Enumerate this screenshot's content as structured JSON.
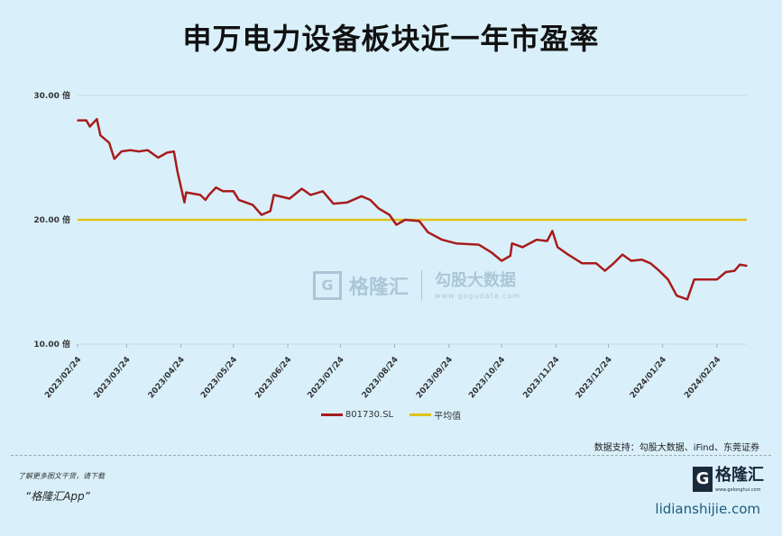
{
  "chart_data": {
    "type": "line",
    "title": "申万电力设备板块近一年市盈率",
    "xlabel": "",
    "ylabel": "",
    "ylim": [
      10,
      30
    ],
    "yticks": [
      "10.00 倍",
      "20.00 倍",
      "30.00 倍"
    ],
    "ytick_values": [
      10,
      20,
      30
    ],
    "xticks": [
      "2023/02/24",
      "2023/03/24",
      "2023/04/24",
      "2023/05/24",
      "2023/06/24",
      "2023/07/24",
      "2023/08/24",
      "2023/09/24",
      "2023/10/24",
      "2023/11/24",
      "2023/12/24",
      "2024/01/24",
      "2024/02/24"
    ],
    "grid": "horizontal",
    "legend_position": "bottom",
    "series": [
      {
        "name": "801730.SL",
        "color": "#a81c1c",
        "points": [
          [
            "2023-02-24",
            28.0
          ],
          [
            "2023-03-01",
            28.0
          ],
          [
            "2023-03-03",
            27.5
          ],
          [
            "2023-03-07",
            28.1
          ],
          [
            "2023-03-09",
            26.8
          ],
          [
            "2023-03-14",
            26.2
          ],
          [
            "2023-03-17",
            24.9
          ],
          [
            "2023-03-21",
            25.5
          ],
          [
            "2023-03-26",
            25.6
          ],
          [
            "2023-03-31",
            25.5
          ],
          [
            "2023-04-05",
            25.6
          ],
          [
            "2023-04-11",
            25.0
          ],
          [
            "2023-04-16",
            25.4
          ],
          [
            "2023-04-20",
            25.5
          ],
          [
            "2023-04-22",
            23.9
          ],
          [
            "2023-04-26",
            21.4
          ],
          [
            "2023-04-27",
            22.2
          ],
          [
            "2023-05-05",
            22.0
          ],
          [
            "2023-05-08",
            21.6
          ],
          [
            "2023-05-10",
            22.0
          ],
          [
            "2023-05-14",
            22.6
          ],
          [
            "2023-05-18",
            22.3
          ],
          [
            "2023-05-24",
            22.3
          ],
          [
            "2023-05-27",
            21.6
          ],
          [
            "2023-06-04",
            21.2
          ],
          [
            "2023-06-09",
            20.4
          ],
          [
            "2023-06-14",
            20.7
          ],
          [
            "2023-06-16",
            22.0
          ],
          [
            "2023-06-25",
            21.7
          ],
          [
            "2023-07-02",
            22.5
          ],
          [
            "2023-07-07",
            22.0
          ],
          [
            "2023-07-14",
            22.3
          ],
          [
            "2023-07-20",
            21.3
          ],
          [
            "2023-07-28",
            21.4
          ],
          [
            "2023-08-05",
            21.9
          ],
          [
            "2023-08-10",
            21.6
          ],
          [
            "2023-08-15",
            20.9
          ],
          [
            "2023-08-21",
            20.4
          ],
          [
            "2023-08-25",
            19.6
          ],
          [
            "2023-08-30",
            20.0
          ],
          [
            "2023-09-07",
            19.9
          ],
          [
            "2023-09-12",
            19.0
          ],
          [
            "2023-09-20",
            18.4
          ],
          [
            "2023-09-28",
            18.1
          ],
          [
            "2023-10-11",
            18.0
          ],
          [
            "2023-10-18",
            17.4
          ],
          [
            "2023-10-24",
            16.7
          ],
          [
            "2023-10-29",
            17.1
          ],
          [
            "2023-10-30",
            18.1
          ],
          [
            "2023-11-05",
            17.8
          ],
          [
            "2023-11-13",
            18.4
          ],
          [
            "2023-11-19",
            18.3
          ],
          [
            "2023-11-22",
            19.1
          ],
          [
            "2023-11-25",
            17.8
          ],
          [
            "2023-12-01",
            17.2
          ],
          [
            "2023-12-09",
            16.5
          ],
          [
            "2023-12-17",
            16.5
          ],
          [
            "2023-12-22",
            15.9
          ],
          [
            "2023-12-27",
            16.5
          ],
          [
            "2024-01-01",
            17.2
          ],
          [
            "2024-01-06",
            16.7
          ],
          [
            "2024-01-12",
            16.8
          ],
          [
            "2024-01-17",
            16.5
          ],
          [
            "2024-01-22",
            15.9
          ],
          [
            "2024-01-27",
            15.2
          ],
          [
            "2024-02-01",
            13.9
          ],
          [
            "2024-02-07",
            13.6
          ],
          [
            "2024-02-11",
            15.2
          ],
          [
            "2024-02-24",
            15.2
          ],
          [
            "2024-02-29",
            15.8
          ],
          [
            "2024-03-05",
            15.9
          ],
          [
            "2024-03-08",
            16.4
          ],
          [
            "2024-03-12",
            16.3
          ]
        ]
      },
      {
        "name": "平均值",
        "color": "#e0c21a",
        "value": 20.0
      }
    ]
  },
  "source": "数据支持：勾股大数据、iFind、东莞证券",
  "footer": {
    "promo_line1": "了解更多图文干货，请下载",
    "promo_line2": "“格隆汇App”",
    "logo_letter": "G",
    "logo_name": "格隆汇",
    "logo_url": "www.gelonghui.com",
    "site": "lidianshijie.com"
  },
  "watermark": {
    "letter": "G",
    "name": "格隆汇",
    "brand": "勾股大数据",
    "url": "www.gogudata.com"
  }
}
